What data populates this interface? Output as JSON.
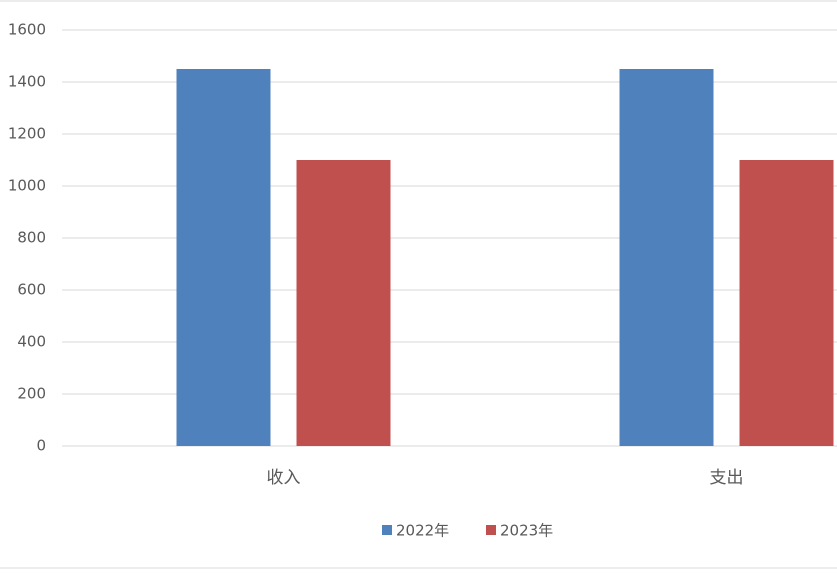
{
  "chart_data": {
    "type": "bar",
    "categories": [
      "收入",
      "支出"
    ],
    "series": [
      {
        "name": "2022年",
        "color": "#4f81bd",
        "values": [
          1450,
          1450
        ]
      },
      {
        "name": "2023年",
        "color": "#c0504d",
        "values": [
          1100,
          1100
        ]
      }
    ],
    "ylim": [
      0,
      1600
    ],
    "yticks": [
      0,
      200,
      400,
      600,
      800,
      1000,
      1200,
      1400,
      1600
    ],
    "grid": true,
    "legend": "bottom"
  }
}
